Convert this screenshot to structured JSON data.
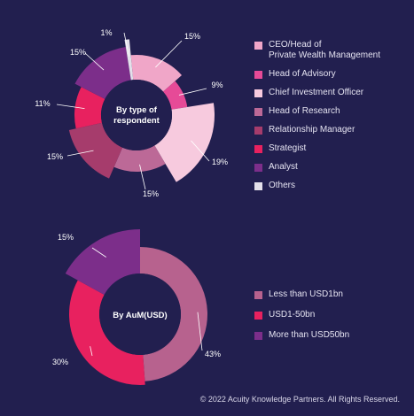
{
  "chart_data": [
    {
      "type": "pie",
      "title": "By type of respondent",
      "colors_note": "variable-radius donut",
      "slices": [
        {
          "label": "CEO/Head of Private Wealth Management",
          "value": 15,
          "label_text": "15%",
          "color": "#f0a6c8"
        },
        {
          "label": "Head of Advisory",
          "value": 9,
          "label_text": "9%",
          "color": "#e64a97"
        },
        {
          "label": "Chief Investment Officer",
          "value": 19,
          "label_text": "19%",
          "color": "#f7cade"
        },
        {
          "label": "Head of Research",
          "value": 15,
          "label_text": "15%",
          "color": "#bc6997"
        },
        {
          "label": "Relationship Manager",
          "value": 15,
          "label_text": "15%",
          "color": "#a63c6c"
        },
        {
          "label": "Strategist",
          "value": 11,
          "label_text": "11%",
          "color": "#e8215f"
        },
        {
          "label": "Analyst",
          "value": 15,
          "label_text": "15%",
          "color": "#7c2e8a"
        },
        {
          "label": "Others",
          "value": 1,
          "label_text": "1%",
          "color": "#e3e0ea"
        }
      ]
    },
    {
      "type": "pie",
      "title": "By AuM(USD)",
      "slices": [
        {
          "label": "Less than USD1bn",
          "value": 43,
          "label_text": "43%",
          "color": "#b7628e"
        },
        {
          "label": "USD1-50bn",
          "value": 30,
          "label_text": "30%",
          "color": "#e8215f"
        },
        {
          "label": "More than USD50bn",
          "value": 15,
          "label_text": "15%",
          "color": "#7c2e8a"
        }
      ]
    }
  ],
  "legend1": [
    {
      "label": "CEO/Head of",
      "label2": "Private Wealth Management",
      "color": "#f0a6c8"
    },
    {
      "label": "Head of Advisory",
      "color": "#e64a97"
    },
    {
      "label": "Chief Investment Officer",
      "color": "#f7cade"
    },
    {
      "label": "Head of Research",
      "color": "#bc6997"
    },
    {
      "label": "Relationship Manager",
      "color": "#a63c6c"
    },
    {
      "label": "Strategist",
      "color": "#e8215f"
    },
    {
      "label": "Analyst",
      "color": "#7c2e8a"
    },
    {
      "label": "Others",
      "color": "#e3e0ea"
    }
  ],
  "legend2": [
    {
      "label": "Less than USD1bn",
      "color": "#b7628e"
    },
    {
      "label": "USD1-50bn",
      "color": "#e8215f"
    },
    {
      "label": "More than USD50bn",
      "color": "#7c2e8a"
    }
  ],
  "center1": {
    "line1": "By type of",
    "line2": "respondent"
  },
  "center2": {
    "line1": "By AuM(USD)"
  },
  "footer": {
    "copyright": "© 2022 Acuity Knowledge Partners. All Rights Reserved."
  },
  "colors": {
    "background": "#221f4f",
    "center_fill": "#221f4f",
    "leader_line": "#ffffff"
  }
}
